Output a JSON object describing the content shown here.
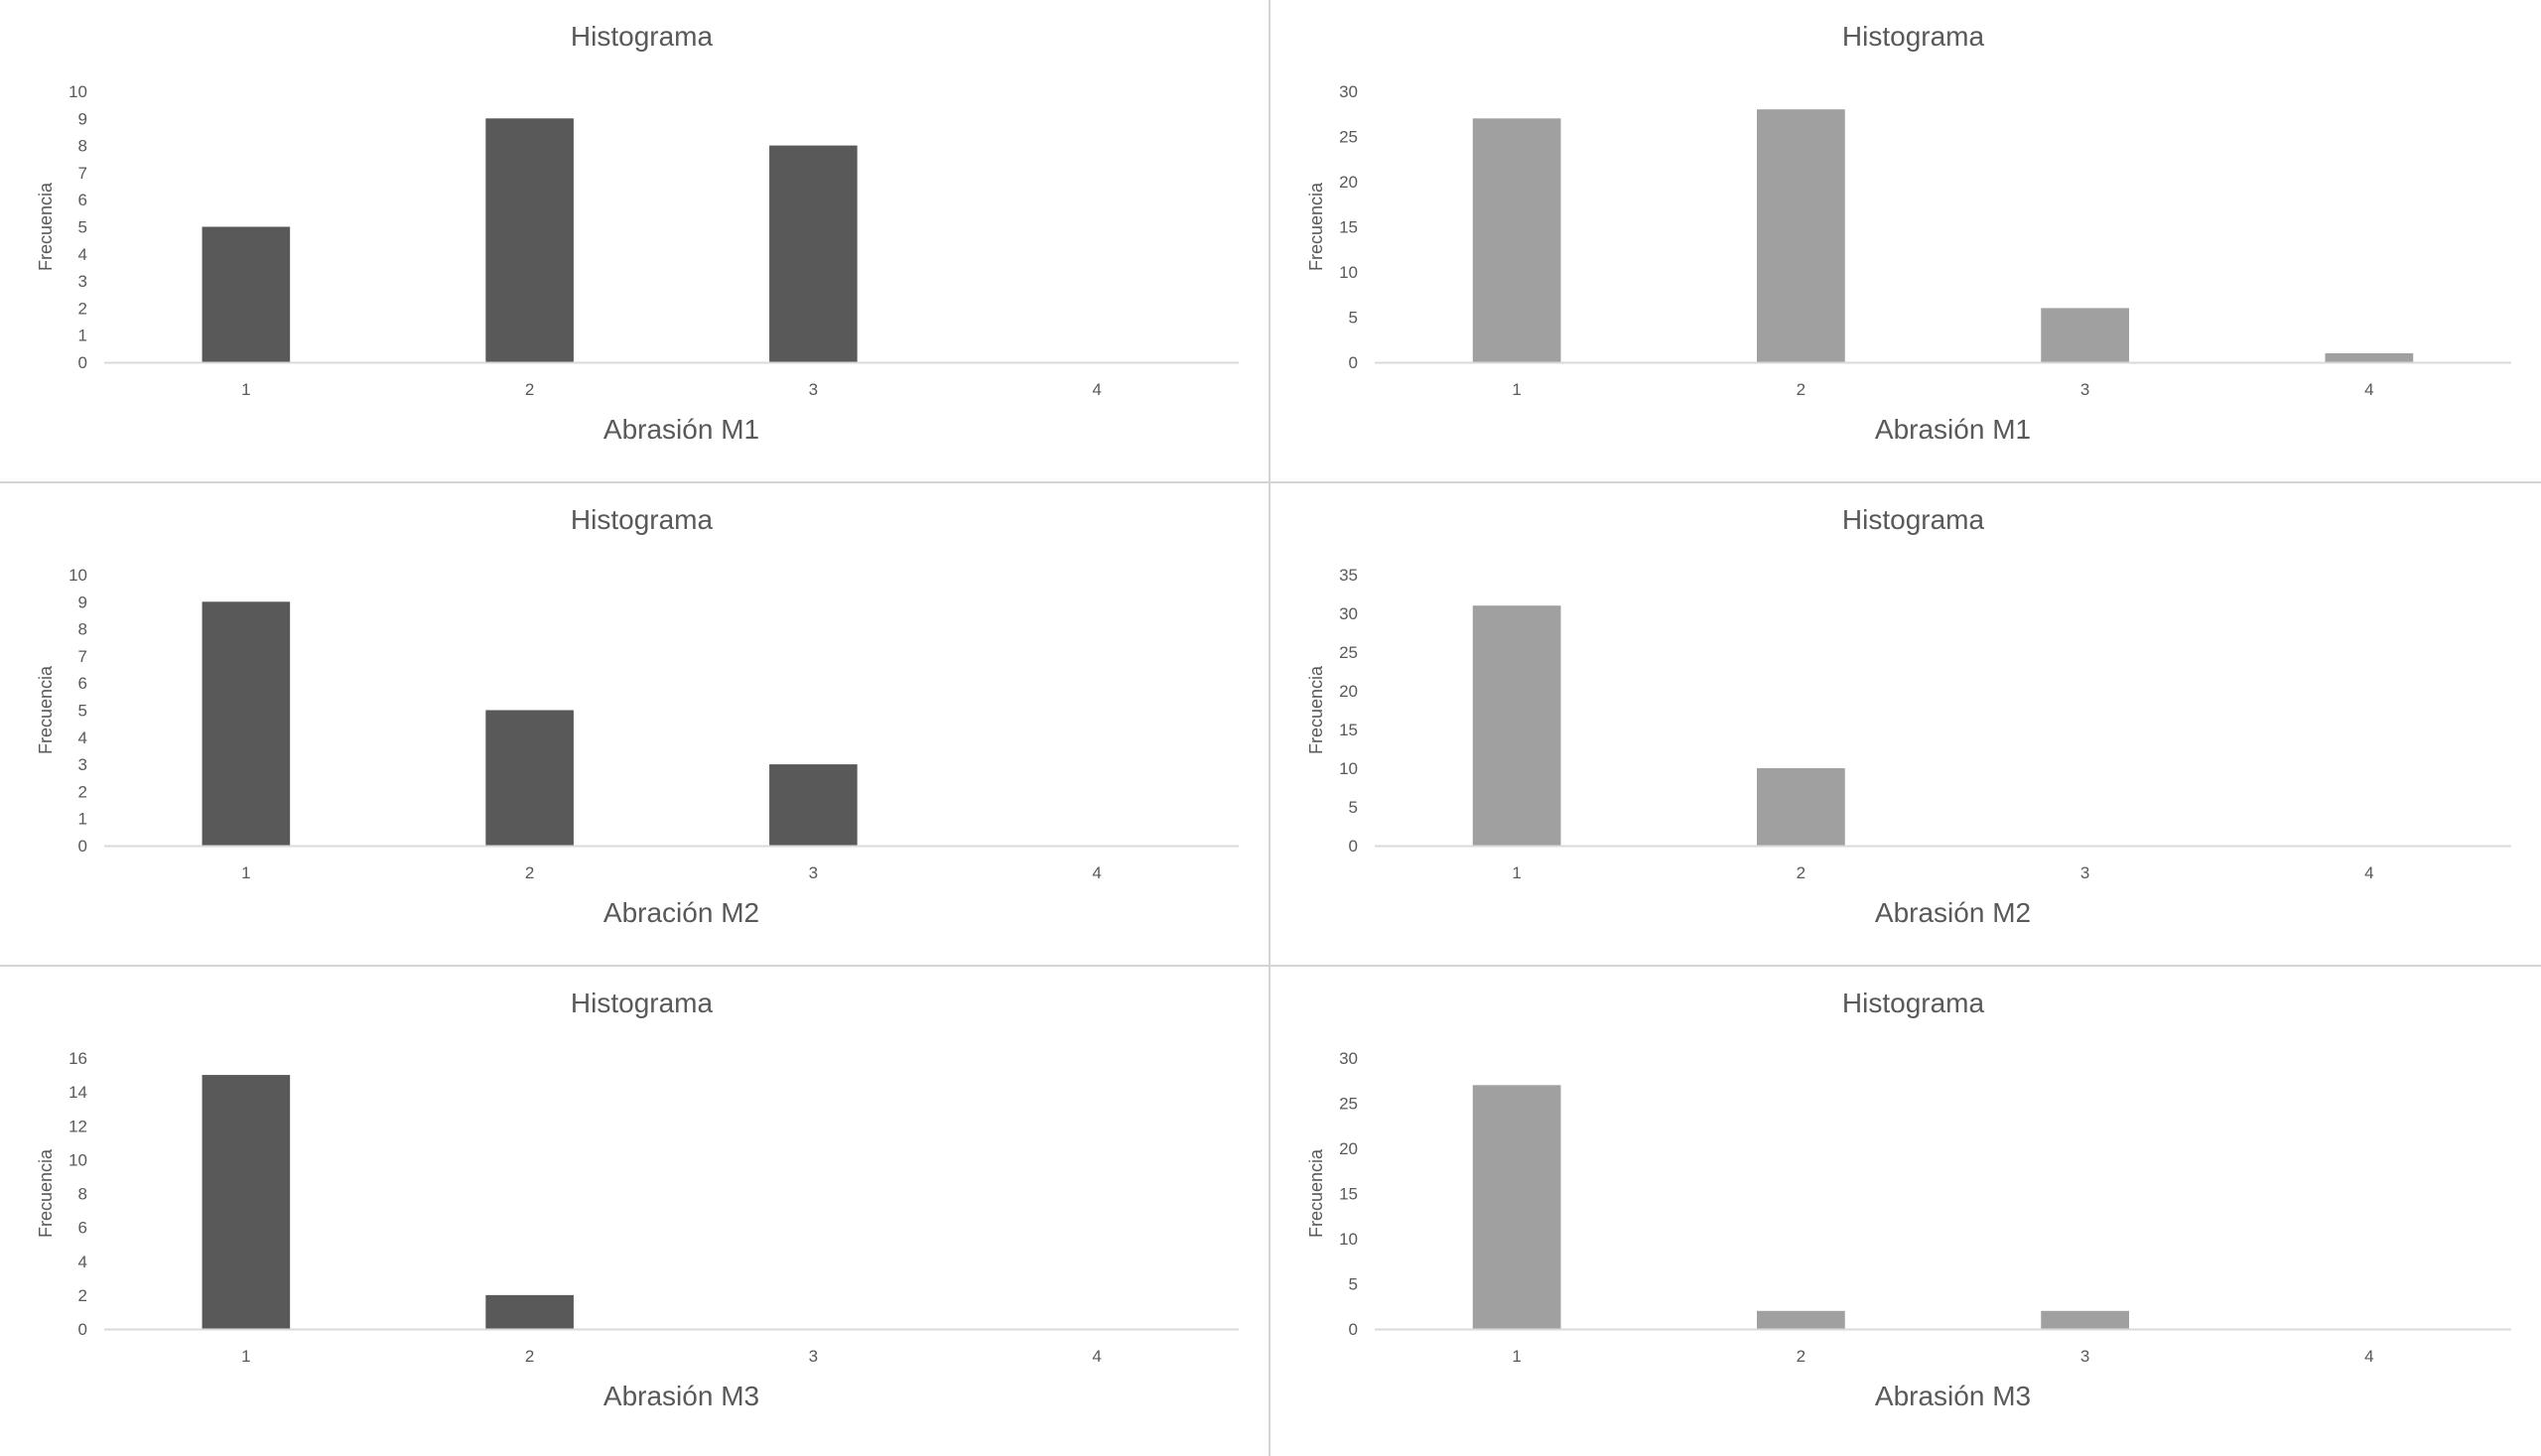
{
  "chart_data": [
    {
      "type": "bar",
      "title": "Histograma",
      "xlabel": "Abrasión M1",
      "ylabel": "Frecuencia",
      "categories": [
        "1",
        "2",
        "3",
        "4"
      ],
      "values": [
        5,
        9,
        8,
        0
      ],
      "ylim": [
        0,
        10
      ],
      "yticks": [
        "0",
        "1",
        "2",
        "3",
        "4",
        "5",
        "6",
        "7",
        "8",
        "9",
        "10"
      ],
      "bar_color": "#595959",
      "grid": false
    },
    {
      "type": "bar",
      "title": "Histograma",
      "xlabel": "Abrasión M1",
      "ylabel": "Frecuencia",
      "categories": [
        "1",
        "2",
        "3",
        "4"
      ],
      "values": [
        27,
        28,
        6,
        1
      ],
      "ylim": [
        0,
        30
      ],
      "yticks": [
        "0",
        "5",
        "10",
        "15",
        "20",
        "25",
        "30"
      ],
      "bar_color": "#a0a0a0",
      "grid": false
    },
    {
      "type": "bar",
      "title": "Histograma",
      "xlabel": "Abración M2",
      "ylabel": "Frecuencia",
      "categories": [
        "1",
        "2",
        "3",
        "4"
      ],
      "values": [
        9,
        5,
        3,
        0
      ],
      "ylim": [
        0,
        10
      ],
      "yticks": [
        "0",
        "1",
        "2",
        "3",
        "4",
        "5",
        "6",
        "7",
        "8",
        "9",
        "10"
      ],
      "bar_color": "#595959",
      "grid": false
    },
    {
      "type": "bar",
      "title": "Histograma",
      "xlabel": "Abrasión M2",
      "ylabel": "Frecuencia",
      "categories": [
        "1",
        "2",
        "3",
        "4"
      ],
      "values": [
        31,
        10,
        0,
        0
      ],
      "ylim": [
        0,
        35
      ],
      "yticks": [
        "0",
        "5",
        "10",
        "15",
        "20",
        "25",
        "30",
        "35"
      ],
      "bar_color": "#a0a0a0",
      "grid": false
    },
    {
      "type": "bar",
      "title": "Histograma",
      "xlabel": "Abrasión M3",
      "ylabel": "Frecuencia",
      "categories": [
        "1",
        "2",
        "3",
        "4"
      ],
      "values": [
        15,
        2,
        0,
        0
      ],
      "ylim": [
        0,
        16
      ],
      "yticks": [
        "0",
        "2",
        "4",
        "6",
        "8",
        "10",
        "12",
        "14",
        "16"
      ],
      "bar_color": "#595959",
      "grid": false
    },
    {
      "type": "bar",
      "title": "Histograma",
      "xlabel": "Abrasión M3",
      "ylabel": "Frecuencia",
      "categories": [
        "1",
        "2",
        "3",
        "4"
      ],
      "values": [
        27,
        2,
        2,
        0
      ],
      "ylim": [
        0,
        30
      ],
      "yticks": [
        "0",
        "5",
        "10",
        "15",
        "20",
        "25",
        "30"
      ],
      "bar_color": "#a0a0a0",
      "grid": false
    }
  ]
}
